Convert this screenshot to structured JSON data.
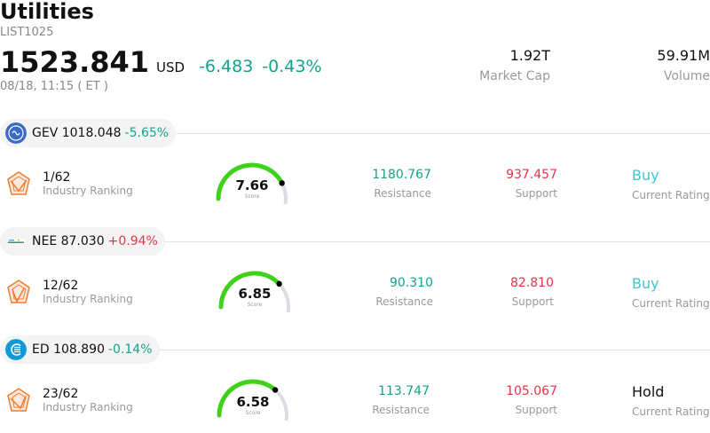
{
  "header": {
    "title": "Utilities",
    "code": "LIST1025",
    "price": "1523.841",
    "currency": "USD",
    "change": "-6.483",
    "change_pct": "-0.43%",
    "time": "08/18, 11:15 ( ET )"
  },
  "stats": {
    "market_cap_value": "1.92T",
    "market_cap_label": "Market Cap",
    "volume_value": "59.91M",
    "volume_label": "Volume"
  },
  "stocks": [
    {
      "symbol_price": "GEV 1018.048",
      "pct": "-5.65%",
      "pct_color": "#14a38a",
      "ranking": "1/62",
      "ranking_label": "Industry Ranking",
      "score": "7.66",
      "score_fraction": 0.766,
      "score_label": "Score",
      "resistance": "1180.767",
      "resistance_label": "Resistance",
      "support": "937.457",
      "support_label": "Support",
      "rating": "Buy",
      "rating_label": "Current Rating"
    },
    {
      "symbol_price": "NEE 87.030",
      "pct": "+0.94%",
      "pct_color": "#e8334a",
      "ranking": "12/62",
      "ranking_label": "Industry Ranking",
      "score": "6.85",
      "score_fraction": 0.685,
      "score_label": "Score",
      "resistance": "90.310",
      "resistance_label": "Resistance",
      "support": "82.810",
      "support_label": "Support",
      "rating": "Buy",
      "rating_label": "Current Rating"
    },
    {
      "symbol_price": "ED 108.890",
      "pct": "-0.14%",
      "pct_color": "#14a38a",
      "ranking": "23/62",
      "ranking_label": "Industry Ranking",
      "score": "6.58",
      "score_fraction": 0.658,
      "score_label": "Score",
      "resistance": "113.747",
      "resistance_label": "Resistance",
      "support": "105.067",
      "support_label": "Support",
      "rating": "Hold",
      "rating_label": "Current Rating"
    }
  ],
  "colors": {
    "up": "#e8334a",
    "down": "#14a38a",
    "buy": "#3ec6cf",
    "gauge_fill": "#3fd21a",
    "gauge_track": "#dcdce6"
  }
}
